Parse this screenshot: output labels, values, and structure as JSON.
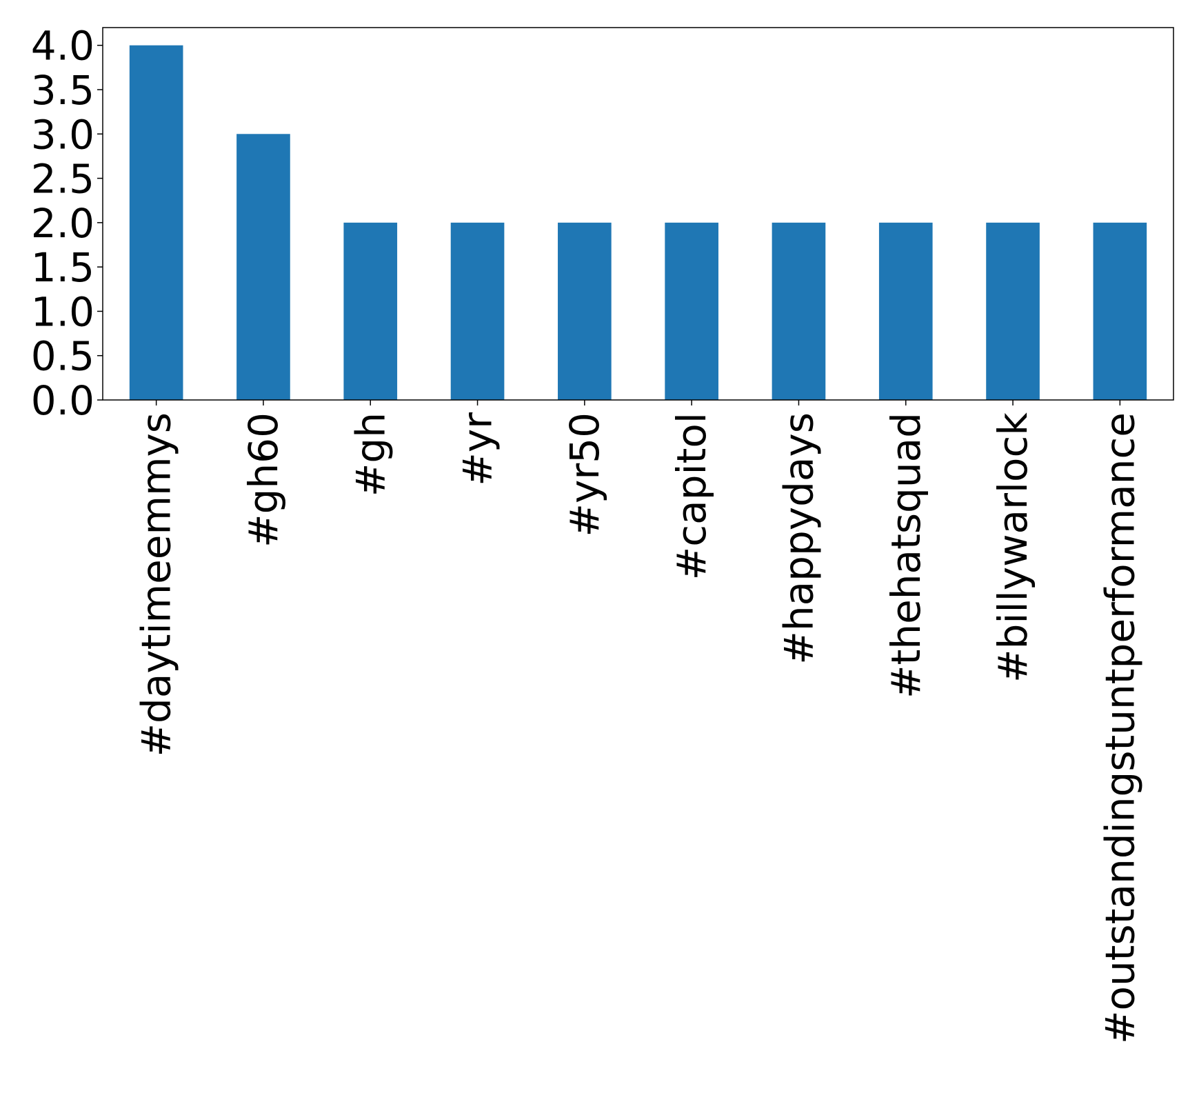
{
  "chart_data": {
    "type": "bar",
    "title": "",
    "xlabel": "",
    "ylabel": "",
    "categories": [
      "#daytimeemmys",
      "#gh60",
      "#gh",
      "#yr",
      "#yr50",
      "#capitol",
      "#happydays",
      "#thehatsquad",
      "#billywarlock",
      "#outstandingstuntperformance"
    ],
    "values": [
      4,
      3,
      2,
      2,
      2,
      2,
      2,
      2,
      2,
      2
    ],
    "ylim": [
      0,
      4.2
    ],
    "yticks": [
      "0.0",
      "0.5",
      "1.0",
      "1.5",
      "2.0",
      "2.5",
      "3.0",
      "3.5",
      "4.0"
    ],
    "bar_color": "#1f77b4",
    "grid": false,
    "legend": "none"
  }
}
